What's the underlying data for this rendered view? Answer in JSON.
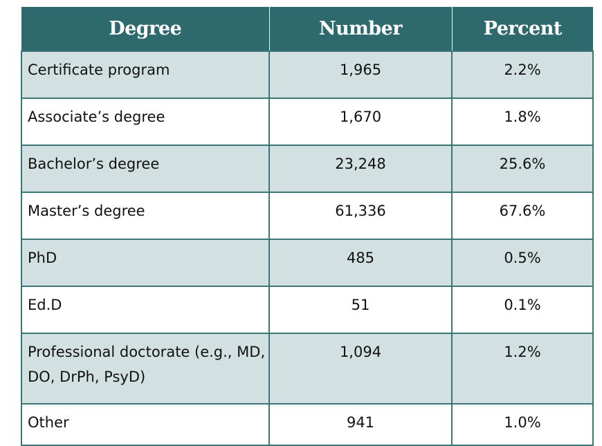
{
  "table": {
    "headers": [
      "Degree",
      "Number",
      "Percent"
    ],
    "rows": [
      {
        "degree": "Certificate program",
        "number": "1,965",
        "percent": "2.2%"
      },
      {
        "degree": "Associate’s degree",
        "number": "1,670",
        "percent": "1.8%"
      },
      {
        "degree": "Bachelor’s degree",
        "number": "23,248",
        "percent": "25.6%"
      },
      {
        "degree": "Master’s degree",
        "number": "61,336",
        "percent": "67.6%"
      },
      {
        "degree": "PhD",
        "number": "485",
        "percent": "0.5%"
      },
      {
        "degree": "Ed.D",
        "number": "51",
        "percent": "0.1%"
      },
      {
        "degree": "Professional doctorate (e.g., MD, DO, DrPh, PsyD)",
        "number": "1,094",
        "percent": "1.2%"
      },
      {
        "degree": "Other",
        "number": "941",
        "percent": "1.0%"
      }
    ]
  },
  "colors": {
    "header_bg": "#2e6a6d",
    "shaded_row_bg": "#d3e0e1",
    "border": "#3b7477"
  }
}
